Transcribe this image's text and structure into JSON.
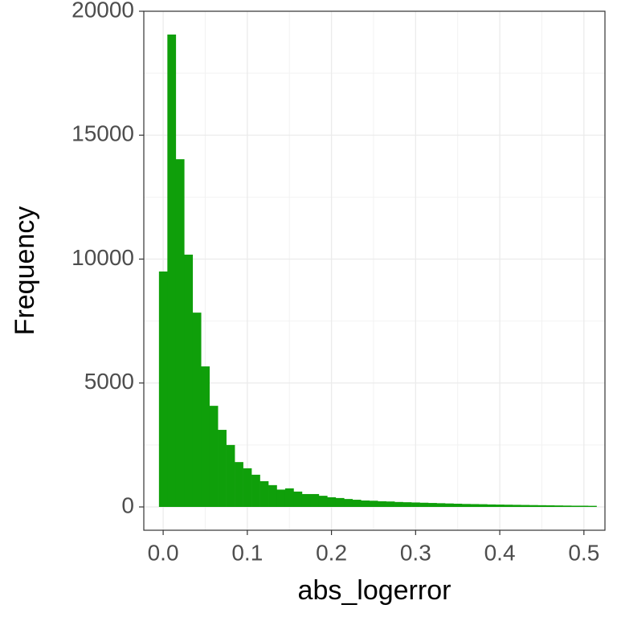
{
  "chart_data": {
    "type": "histogram",
    "x_label": "abs_logerror",
    "y_label": "Frequency",
    "color": "#0f9f0a",
    "bins": [
      -0.005,
      0.005,
      0.015,
      0.025,
      0.035,
      0.045,
      0.055,
      0.065,
      0.075,
      0.085,
      0.095,
      0.105,
      0.115,
      0.125,
      0.135,
      0.145,
      0.155,
      0.165,
      0.175,
      0.185,
      0.195,
      0.205,
      0.215,
      0.225,
      0.235,
      0.245,
      0.255,
      0.265,
      0.275,
      0.285,
      0.295,
      0.305,
      0.315,
      0.325,
      0.335,
      0.345,
      0.355,
      0.365,
      0.375,
      0.385,
      0.395,
      0.405,
      0.415,
      0.425,
      0.435,
      0.445,
      0.455,
      0.465,
      0.475,
      0.485,
      0.495,
      0.505,
      0.515
    ],
    "counts": [
      9500,
      19060,
      14030,
      10180,
      7840,
      5670,
      4080,
      3110,
      2500,
      1810,
      1560,
      1300,
      1040,
      880,
      700,
      750,
      620,
      520,
      520,
      450,
      390,
      360,
      320,
      290,
      260,
      250,
      230,
      220,
      200,
      190,
      180,
      170,
      160,
      150,
      140,
      130,
      120,
      115,
      110,
      100,
      95,
      90,
      85,
      80,
      75,
      70,
      65,
      60,
      55,
      50,
      50,
      45
    ],
    "xlim": [
      -0.023,
      0.525
    ],
    "ylim": [
      -940,
      20000
    ],
    "xticks": [
      {
        "value": 0,
        "label": "0.0"
      },
      0.1,
      0.2,
      0.3,
      0.4,
      0.5
    ],
    "yticks": [
      0,
      5000,
      10000,
      15000,
      20000
    ],
    "minor_xticks": [
      0.05,
      0.15,
      0.25,
      0.35,
      0.45
    ],
    "minor_yticks": [
      2500,
      7500,
      12500,
      17500
    ],
    "grid": true
  }
}
